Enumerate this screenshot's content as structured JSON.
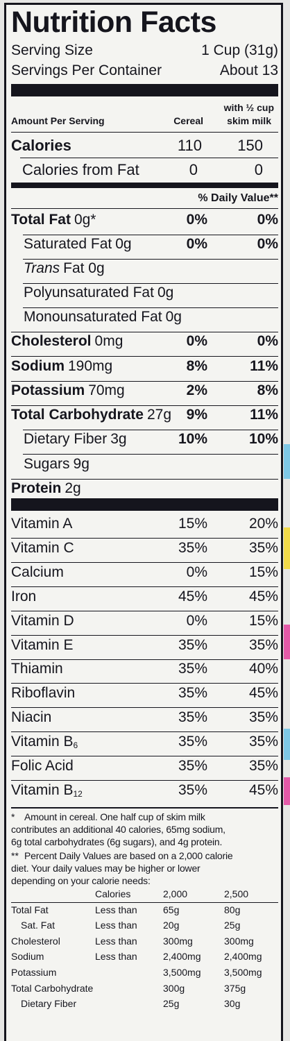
{
  "title": "Nutrition Facts",
  "serving_size_label": "Serving Size",
  "serving_size_value": "1 Cup (31g)",
  "servings_label": "Servings Per Container",
  "servings_value": "About 13",
  "amount_per_serving": "Amount Per Serving",
  "col_cereal": "Cereal",
  "col_milk_line1": "with ½ cup",
  "col_milk_line2": "skim milk",
  "calories_label": "Calories",
  "calories_cereal": "110",
  "calories_milk": "150",
  "calfat_label": "Calories from Fat",
  "calfat_cereal": "0",
  "calfat_milk": "0",
  "dv_header": "% Daily Value**",
  "nutrients": [
    {
      "name": "Total Fat",
      "amount": "0g*",
      "cereal": "0%",
      "milk": "0%"
    },
    {
      "name": "Saturated Fat",
      "amount": "0g",
      "cereal": "0%",
      "milk": "0%"
    },
    {
      "name": "Trans",
      "amount": "Fat 0g",
      "cereal": "",
      "milk": ""
    },
    {
      "name": "Polyunsaturated Fat",
      "amount": "0g",
      "cereal": "",
      "milk": ""
    },
    {
      "name": "Monounsaturated Fat",
      "amount": "0g",
      "cereal": "",
      "milk": ""
    },
    {
      "name": "Cholesterol",
      "amount": "0mg",
      "cereal": "0%",
      "milk": "0%"
    },
    {
      "name": "Sodium",
      "amount": "190mg",
      "cereal": "8%",
      "milk": "11%"
    },
    {
      "name": "Potassium",
      "amount": "70mg",
      "cereal": "2%",
      "milk": "8%"
    },
    {
      "name": "Total Carbohydrate",
      "amount": "27g",
      "cereal": "9%",
      "milk": "11%"
    },
    {
      "name": "Dietary Fiber",
      "amount": "3g",
      "cereal": "10%",
      "milk": "10%"
    },
    {
      "name": "Sugars",
      "amount": "9g",
      "cereal": "",
      "milk": ""
    },
    {
      "name": "Protein",
      "amount": "2g",
      "cereal": "",
      "milk": ""
    }
  ],
  "vitamins": [
    {
      "name": "Vitamin A",
      "cereal": "15%",
      "milk": "20%"
    },
    {
      "name": "Vitamin C",
      "cereal": "35%",
      "milk": "35%"
    },
    {
      "name": "Calcium",
      "cereal": "0%",
      "milk": "15%"
    },
    {
      "name": "Iron",
      "cereal": "45%",
      "milk": "45%"
    },
    {
      "name": "Vitamin D",
      "cereal": "0%",
      "milk": "15%"
    },
    {
      "name": "Vitamin E",
      "cereal": "35%",
      "milk": "35%"
    },
    {
      "name": "Thiamin",
      "cereal": "35%",
      "milk": "40%"
    },
    {
      "name": "Riboflavin",
      "cereal": "35%",
      "milk": "45%"
    },
    {
      "name": "Niacin",
      "cereal": "35%",
      "milk": "35%"
    },
    {
      "name": "Vitamin B",
      "sub": "6",
      "cereal": "35%",
      "milk": "35%"
    },
    {
      "name": "Folic Acid",
      "cereal": "35%",
      "milk": "35%"
    },
    {
      "name": "Vitamin B",
      "sub": "12",
      "cereal": "35%",
      "milk": "45%"
    }
  ],
  "footnote1_mark": "*",
  "footnote1_lines": [
    "Amount in cereal. One half cup of skim milk",
    "contributes an additional 40 calories, 65mg sodium,",
    "6g total carbohydrates (6g sugars), and 4g protein."
  ],
  "footnote2_mark": "**",
  "footnote2_lines": [
    "Percent Daily Values are based on a 2,000 calorie",
    "diet. Your daily values may be higher or lower",
    "depending on your calorie needs:"
  ],
  "dv_table": {
    "header": [
      "",
      "Calories",
      "2,000",
      "2,500"
    ],
    "rows": [
      [
        "Total Fat",
        "Less than",
        "65g",
        "80g"
      ],
      [
        "Sat. Fat",
        "Less than",
        "20g",
        "25g"
      ],
      [
        "Cholesterol",
        "Less than",
        "300mg",
        "300mg"
      ],
      [
        "Sodium",
        "Less than",
        "2,400mg",
        "2,400mg"
      ],
      [
        "Potassium",
        "",
        "3,500mg",
        "3,500mg"
      ],
      [
        "Total Carbohydrate",
        "",
        "300g",
        "375g"
      ],
      [
        "Dietary Fiber",
        "",
        "25g",
        "30g"
      ]
    ]
  },
  "colors": {
    "ink": "#15151d",
    "paper": "#f4f4f1",
    "background": "#e6e6e4"
  }
}
